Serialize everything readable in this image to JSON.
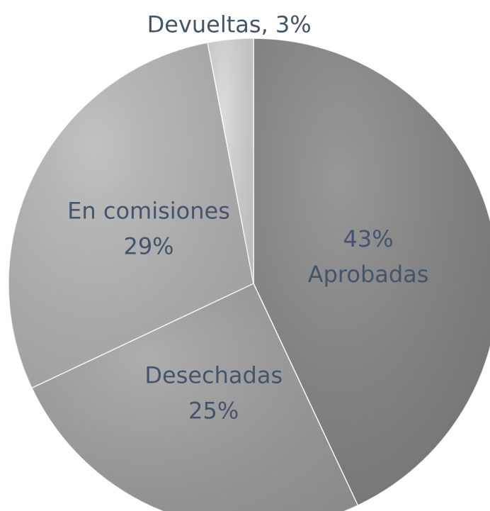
{
  "chart_data": {
    "type": "pie",
    "labels": [
      [
        "43%",
        "Aprobadas"
      ],
      [
        "Desechadas",
        "25%"
      ],
      [
        "En comisiones",
        "29%"
      ],
      [
        "Devueltas, 3%"
      ]
    ],
    "values": [
      43,
      25,
      29,
      3
    ],
    "colors": [
      "#828282",
      "#9c9c9c",
      "#b3b3b3",
      "#d4d4d4"
    ]
  }
}
